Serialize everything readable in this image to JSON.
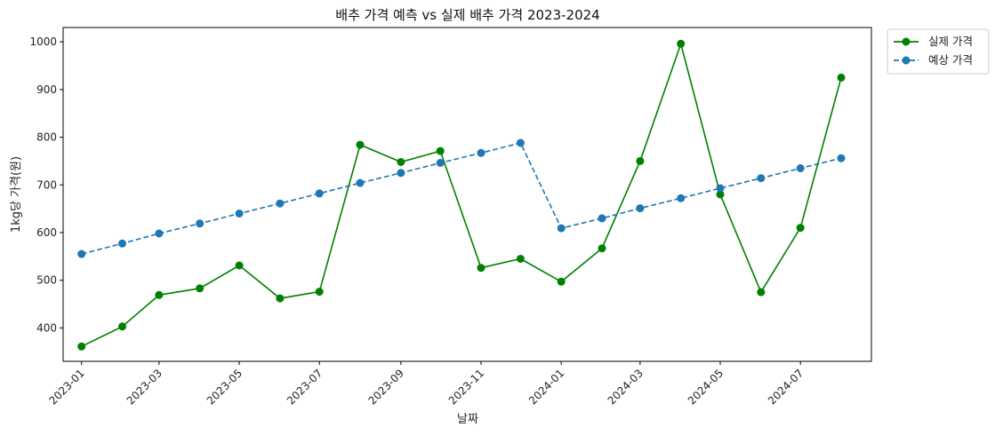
{
  "chart_data": {
    "type": "line",
    "title": "배추 가격 예측 vs 실제 배추 가격 2023-2024",
    "xlabel": "날짜",
    "ylabel": "1kg당 가격(원)",
    "ylim": [
      330,
      1030
    ],
    "xlim": [
      "2022-12-18",
      "2024-08-24"
    ],
    "yticks": [
      400,
      500,
      600,
      700,
      800,
      900,
      1000
    ],
    "xticks": [
      "2023-01",
      "2023-03",
      "2023-05",
      "2023-07",
      "2023-09",
      "2023-11",
      "2024-01",
      "2024-03",
      "2024-05",
      "2024-07"
    ],
    "legend_position": "outside-top-right",
    "grid": false,
    "x": [
      "2023-01-01",
      "2023-02-01",
      "2023-03-01",
      "2023-04-01",
      "2023-05-01",
      "2023-06-01",
      "2023-07-01",
      "2023-08-01",
      "2023-09-01",
      "2023-10-01",
      "2023-11-01",
      "2023-12-01",
      "2024-01-01",
      "2024-02-01",
      "2024-03-01",
      "2024-04-01",
      "2024-05-01",
      "2024-06-01",
      "2024-07-01",
      "2024-08-01"
    ],
    "series": [
      {
        "name": "실제 가격",
        "color": "#008000",
        "style": "solid",
        "values": [
          361,
          403,
          469,
          483,
          531,
          462,
          476,
          784,
          748,
          771,
          526,
          545,
          497,
          567,
          750,
          996,
          680,
          475,
          610,
          925
        ]
      },
      {
        "name": "예상 가격",
        "color": "#1f77b4",
        "style": "dashed",
        "values": [
          555,
          577,
          598,
          619,
          640,
          661,
          682,
          704,
          725,
          746,
          767,
          788,
          609,
          630,
          651,
          672,
          693,
          714,
          735,
          756
        ]
      }
    ]
  }
}
